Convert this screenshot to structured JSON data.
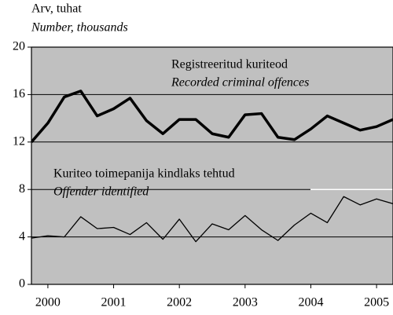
{
  "chart_data": {
    "type": "line",
    "y_label": "Arv, tuhat",
    "y_label_en": "Number, thousands",
    "x": [
      1999.75,
      2000,
      2000.25,
      2000.5,
      2000.75,
      2001,
      2001.25,
      2001.5,
      2001.75,
      2002,
      2002.25,
      2002.5,
      2002.75,
      2003,
      2003.25,
      2003.5,
      2003.75,
      2004,
      2004.25,
      2004.5,
      2004.75,
      2005,
      2005.25
    ],
    "series": [
      {
        "name": "Registreeritud kuriteod",
        "name_en": "Recorded criminal offences",
        "color": "#000000",
        "width": 3.5,
        "values": [
          12.0,
          13.6,
          15.8,
          16.3,
          14.2,
          14.8,
          15.7,
          13.8,
          12.7,
          13.9,
          13.9,
          12.7,
          12.4,
          14.3,
          14.4,
          12.4,
          12.2,
          13.1,
          14.2,
          13.6,
          13.0,
          13.3,
          13.9
        ]
      },
      {
        "name": "Kuriteo toimepanija kindlaks tehtud",
        "name_en": "Offender identified",
        "color": "#000000",
        "width": 1.3,
        "values": [
          3.9,
          4.1,
          4.0,
          5.7,
          4.7,
          4.8,
          4.2,
          5.2,
          3.8,
          5.5,
          3.6,
          5.1,
          4.6,
          5.8,
          4.6,
          3.7,
          5.0,
          6.0,
          5.2,
          7.4,
          6.7,
          7.2,
          6.8
        ]
      }
    ],
    "xlim": [
      1999.75,
      2005.25
    ],
    "xticks": [
      2000,
      2001,
      2002,
      2003,
      2004,
      2005
    ],
    "ylim": [
      0,
      20
    ],
    "yticks": [
      0,
      4,
      8,
      12,
      16,
      20
    ],
    "grid": true,
    "background": "#c0c0c0"
  }
}
